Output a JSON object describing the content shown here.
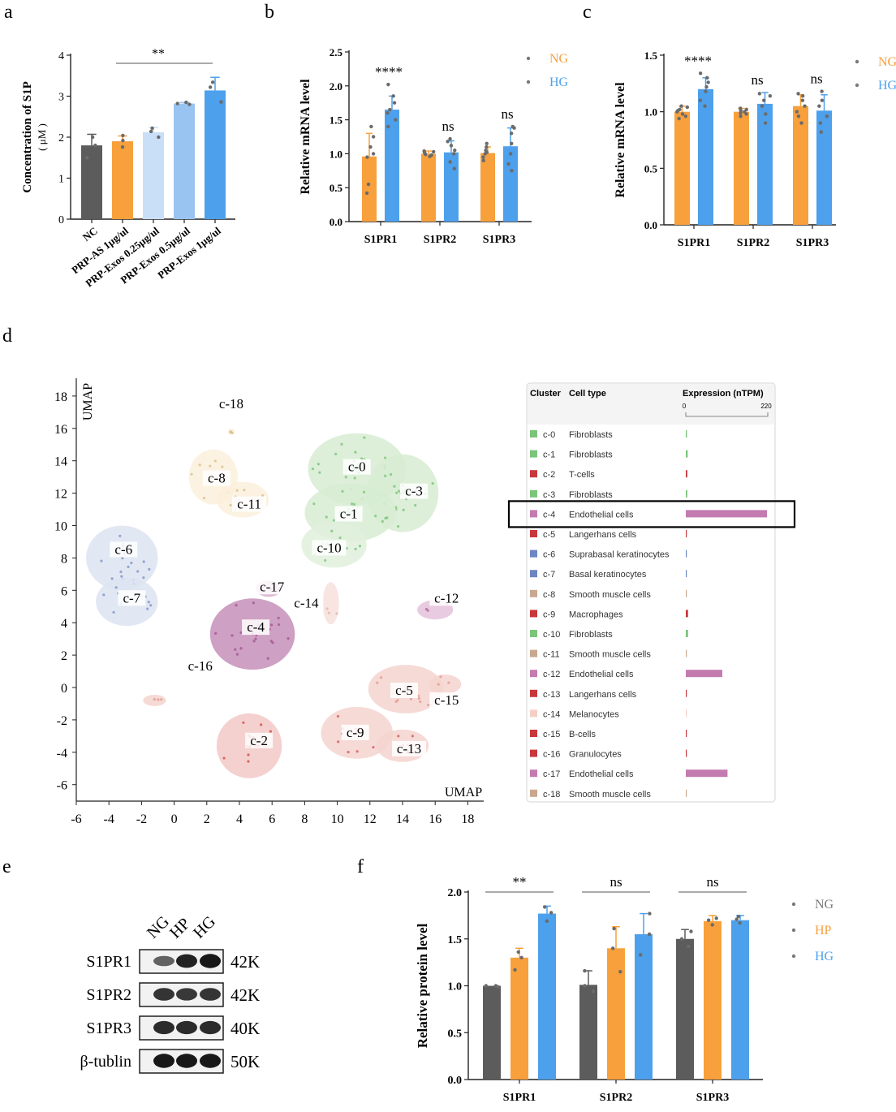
{
  "colors": {
    "NC": "#5c5c5c",
    "PRP-AS": "#f7a03c",
    "Exos025": "#c9dff7",
    "Exos05": "#99c4f2",
    "Exos1": "#4da0ec",
    "NG": "#f7a03c",
    "HG": "#4da0ec",
    "HP": "#f7a03c",
    "NGgrey": "#5c5c5c",
    "dot": "#6b6b6b"
  },
  "panel_letters": {
    "a": "a",
    "b": "b",
    "c": "c",
    "d": "d",
    "e": "e",
    "f": "f"
  },
  "chart_data": [
    {
      "id": "a",
      "type": "bar",
      "ylabel": "Concentration of S1P",
      "yunit": "( μM )",
      "ylim": [
        0,
        4
      ],
      "yticks": [
        "0",
        "1",
        "2",
        "3",
        "4"
      ],
      "categories": [
        "NC",
        "PRP-AS 1μg/ul",
        "PRP-Exos 0.25μg/ul",
        "PRP-Exos 0.5μg/ul",
        "PRP-Exos 1μg/ul"
      ],
      "values": [
        1.8,
        1.9,
        2.12,
        2.82,
        3.14
      ],
      "errors": [
        0.27,
        0.13,
        0.12,
        0.03,
        0.32
      ],
      "points": [
        [
          1.5,
          1.8,
          2.0
        ],
        [
          1.76,
          1.92,
          2.04
        ],
        [
          2.0,
          2.14,
          2.22
        ],
        [
          2.8,
          2.82,
          2.85
        ],
        [
          2.86,
          3.22,
          3.34
        ]
      ],
      "annotation": "**"
    },
    {
      "id": "b",
      "type": "bar",
      "ylabel": "Relative mRNA level",
      "ylim": [
        0,
        2.5
      ],
      "yticks": [
        "0.0",
        "0.5",
        "1.0",
        "1.5",
        "2.0",
        "2.5"
      ],
      "categories": [
        "S1PR1",
        "S1PR2",
        "S1PR3"
      ],
      "series": [
        {
          "name": "NG",
          "values": [
            0.96,
            1.0,
            1.01
          ],
          "errors": [
            0.34,
            0.04,
            0.09
          ],
          "points": [
            [
              0.42,
              0.55,
              0.95,
              1.0,
              1.1,
              1.25,
              1.4
            ],
            [
              0.96,
              0.98,
              0.99,
              1.0,
              1.02,
              1.03,
              1.04
            ],
            [
              0.9,
              0.95,
              1.0,
              1.02,
              1.05,
              1.1,
              1.15
            ]
          ]
        },
        {
          "name": "HG",
          "values": [
            1.65,
            1.02,
            1.11
          ],
          "errors": [
            0.2,
            0.17,
            0.27
          ],
          "points": [
            [
              1.4,
              1.5,
              1.6,
              1.65,
              1.75,
              1.85,
              2.02
            ],
            [
              0.78,
              0.88,
              1.0,
              1.05,
              1.12,
              1.18,
              1.22
            ],
            [
              0.75,
              0.85,
              1.0,
              1.15,
              1.3,
              1.38,
              1.4
            ]
          ]
        }
      ],
      "annotations": [
        "****",
        "ns",
        "ns"
      ]
    },
    {
      "id": "c",
      "type": "bar",
      "ylabel": "Relative mRNA level",
      "ylim": [
        0,
        1.5
      ],
      "yticks": [
        "0.0",
        "0.5",
        "1.0",
        "1.5"
      ],
      "categories": [
        "S1PR1",
        "S1PR2",
        "S1PR3"
      ],
      "series": [
        {
          "name": "NG",
          "values": [
            1.0,
            1.0,
            1.05
          ],
          "errors": [
            0.05,
            0.03,
            0.1
          ],
          "points": [
            [
              0.94,
              0.96,
              0.98,
              1.0,
              1.01,
              1.02,
              1.04,
              1.05
            ],
            [
              0.96,
              0.98,
              0.99,
              1.0,
              1.01,
              1.02,
              1.03
            ],
            [
              0.9,
              0.96,
              1.0,
              1.05,
              1.1,
              1.14,
              1.16
            ]
          ]
        },
        {
          "name": "HG",
          "values": [
            1.2,
            1.07,
            1.01
          ],
          "errors": [
            0.1,
            0.1,
            0.14
          ],
          "points": [
            [
              1.05,
              1.1,
              1.18,
              1.22,
              1.26,
              1.3,
              1.34
            ],
            [
              0.9,
              0.98,
              1.05,
              1.1,
              1.14,
              1.16
            ],
            [
              0.82,
              0.9,
              0.96,
              1.05,
              1.1,
              1.18
            ]
          ]
        }
      ],
      "annotations": [
        "****",
        "ns",
        "ns"
      ]
    },
    {
      "id": "d",
      "type": "scatter",
      "xlabel": "UMAP",
      "ylabel": "UMAP",
      "xlim": [
        -6,
        19
      ],
      "ylim": [
        -7,
        19
      ],
      "xticks": [
        "-6",
        "-4",
        "-2",
        "0",
        "2",
        "4",
        "6",
        "8",
        "10",
        "12",
        "14",
        "16",
        "18"
      ],
      "yticks": [
        "-6",
        "-4",
        "-2",
        "0",
        "2",
        "4",
        "6",
        "8",
        "10",
        "12",
        "14",
        "16",
        "18"
      ],
      "clusters": [
        {
          "label": "c-0",
          "x": 11.2,
          "y": 13.5,
          "rx": 3.0,
          "ry": 2.2,
          "color": "#d7ecd2",
          "dot": "#7bc47a"
        },
        {
          "label": "c-3",
          "x": 14.0,
          "y": 12.0,
          "rx": 2.2,
          "ry": 2.4,
          "color": "#d7ecd2",
          "dot": "#7bc47a"
        },
        {
          "label": "c-1",
          "x": 10.8,
          "y": 10.8,
          "rx": 2.8,
          "ry": 1.8,
          "color": "#d7ecd2",
          "dot": "#7bc47a"
        },
        {
          "label": "c-10",
          "x": 9.8,
          "y": 8.8,
          "rx": 2.0,
          "ry": 1.4,
          "color": "#e0f0dc",
          "dot": "#7bc47a"
        },
        {
          "label": "c-8",
          "x": 2.4,
          "y": 13.0,
          "rx": 1.5,
          "ry": 1.7,
          "color": "#fbf0dc",
          "dot": "#d9c08a"
        },
        {
          "label": "c-11",
          "x": 4.2,
          "y": 11.6,
          "rx": 1.6,
          "ry": 1.1,
          "color": "#fbf0dc",
          "dot": "#d9c08a"
        },
        {
          "label": "c-6",
          "x": -3.2,
          "y": 8.0,
          "rx": 2.2,
          "ry": 2.0,
          "color": "#dde4f1",
          "dot": "#7f95c8"
        },
        {
          "label": "c-7",
          "x": -2.9,
          "y": 5.3,
          "rx": 1.9,
          "ry": 1.5,
          "color": "#dde4f1",
          "dot": "#7f95c8"
        },
        {
          "label": "c-4",
          "x": 4.8,
          "y": 3.3,
          "rx": 2.6,
          "ry": 2.2,
          "color": "#c58fb8",
          "dot": "#a35592"
        },
        {
          "label": "c-17",
          "x": 5.8,
          "y": 6.1,
          "rx": 0.8,
          "ry": 0.5,
          "color": "#d9abcb",
          "dot": "#a35592"
        },
        {
          "label": "c-12",
          "x": 16.0,
          "y": 4.8,
          "rx": 1.1,
          "ry": 0.6,
          "color": "#e5c2dc",
          "dot": "#b56aa3"
        },
        {
          "label": "c-14",
          "x": 9.6,
          "y": 5.2,
          "rx": 0.5,
          "ry": 1.3,
          "color": "#f7e0dc",
          "dot": "#e7b3ab"
        },
        {
          "label": "c-5",
          "x": 14.2,
          "y": -0.1,
          "rx": 2.3,
          "ry": 1.5,
          "color": "#f5d3cf",
          "dot": "#e39891"
        },
        {
          "label": "c-15",
          "x": 16.6,
          "y": 0.2,
          "rx": 1.0,
          "ry": 0.6,
          "color": "#f5d3cf",
          "dot": "#e39891"
        },
        {
          "label": "c-9",
          "x": 11.2,
          "y": -2.8,
          "rx": 2.2,
          "ry": 1.6,
          "color": "#f5d3cf",
          "dot": "#d65c5c"
        },
        {
          "label": "c-13",
          "x": 14.0,
          "y": -3.6,
          "rx": 1.6,
          "ry": 1.0,
          "color": "#f5d3cf",
          "dot": "#d65c5c"
        },
        {
          "label": "c-2",
          "x": 4.6,
          "y": -3.6,
          "rx": 2.0,
          "ry": 2.0,
          "color": "#f2c9c6",
          "dot": "#d24b4b"
        },
        {
          "label": "c-16",
          "x": -1.2,
          "y": -0.8,
          "rx": 0.7,
          "ry": 0.35,
          "color": "#f5d3cf",
          "dot": "#e39891"
        },
        {
          "label": "c-18",
          "x": 3.5,
          "y": 15.8,
          "rx": 0.2,
          "ry": 0.2,
          "color": "#fbf0dc",
          "dot": "#d9c08a"
        }
      ],
      "label_positions": [
        {
          "label": "c-18",
          "x": 3.5,
          "y": 17.4
        },
        {
          "label": "c-8",
          "x": 2.6,
          "y": 12.8
        },
        {
          "label": "c-11",
          "x": 4.6,
          "y": 11.2
        },
        {
          "label": "c-0",
          "x": 11.2,
          "y": 13.5
        },
        {
          "label": "c-3",
          "x": 14.7,
          "y": 12.0
        },
        {
          "label": "c-1",
          "x": 10.7,
          "y": 10.6
        },
        {
          "label": "c-10",
          "x": 9.5,
          "y": 8.5
        },
        {
          "label": "c-6",
          "x": -3.1,
          "y": 8.4
        },
        {
          "label": "c-7",
          "x": -2.6,
          "y": 5.4
        },
        {
          "label": "c-17",
          "x": 6.0,
          "y": 6.1
        },
        {
          "label": "c-14",
          "x": 8.1,
          "y": 5.1
        },
        {
          "label": "c-12",
          "x": 16.7,
          "y": 5.4
        },
        {
          "label": "c-4",
          "x": 5.0,
          "y": 3.6
        },
        {
          "label": "c-16",
          "x": 1.6,
          "y": 1.2
        },
        {
          "label": "c-5",
          "x": 14.1,
          "y": -0.3
        },
        {
          "label": "c-15",
          "x": 16.7,
          "y": -0.9
        },
        {
          "label": "c-9",
          "x": 11.1,
          "y": -2.9
        },
        {
          "label": "c-13",
          "x": 14.4,
          "y": -3.9
        },
        {
          "label": "c-2",
          "x": 5.2,
          "y": -3.4
        }
      ]
    },
    {
      "id": "f",
      "type": "bar",
      "ylabel": "Relative protein level",
      "ylim": [
        0,
        2.0
      ],
      "yticks": [
        "0.0",
        "0.5",
        "1.0",
        "1.5",
        "2.0"
      ],
      "categories": [
        "S1PR1",
        "S1PR2",
        "S1PR3"
      ],
      "series": [
        {
          "name": "NG",
          "values": [
            1.0,
            1.01,
            1.5
          ],
          "errors": [
            0.0,
            0.15,
            0.1
          ],
          "points": [
            [
              0.99,
              1.0,
              1.0
            ],
            [
              0.94,
              1.0,
              1.16
            ],
            [
              1.42,
              1.5,
              1.58
            ]
          ]
        },
        {
          "name": "HP",
          "values": [
            1.3,
            1.4,
            1.69
          ],
          "errors": [
            0.1,
            0.23,
            0.06
          ],
          "points": [
            [
              1.17,
              1.3,
              1.36
            ],
            [
              1.15,
              1.4,
              1.61
            ],
            [
              1.65,
              1.7,
              1.72
            ]
          ]
        },
        {
          "name": "HG",
          "values": [
            1.77,
            1.55,
            1.7
          ],
          "errors": [
            0.08,
            0.22,
            0.05
          ],
          "points": [
            [
              1.69,
              1.78,
              1.84
            ],
            [
              1.33,
              1.55,
              1.77
            ],
            [
              1.67,
              1.71,
              1.74
            ]
          ]
        }
      ],
      "annotations": [
        "**",
        "ns",
        "ns"
      ]
    }
  ],
  "umap_legend": {
    "headers": {
      "cluster": "Cluster",
      "celltype": "Cell type",
      "expression": "Expression (nTPM)"
    },
    "scale": {
      "min": "0",
      "max": "220",
      "max_value": 220
    },
    "rows": [
      {
        "cluster": "c-0",
        "type": "Fibroblasts",
        "color": "#7bc47a",
        "value": 3
      },
      {
        "cluster": "c-1",
        "type": "Fibroblasts",
        "color": "#7bc47a",
        "value": 5
      },
      {
        "cluster": "c-2",
        "type": "T-cells",
        "color": "#c8373c",
        "value": 4
      },
      {
        "cluster": "c-3",
        "type": "Fibroblasts",
        "color": "#7bc47a",
        "value": 4
      },
      {
        "cluster": "c-4",
        "type": "Endothelial cells",
        "color": "#c37bb0",
        "value": 218,
        "highlight": true
      },
      {
        "cluster": "c-5",
        "type": "Langerhans cells",
        "color": "#c8373c",
        "value": 1
      },
      {
        "cluster": "c-6",
        "type": "Suprabasal keratinocytes",
        "color": "#6c86c1",
        "value": 1
      },
      {
        "cluster": "c-7",
        "type": "Basal keratinocytes",
        "color": "#6c86c1",
        "value": 1
      },
      {
        "cluster": "c-8",
        "type": "Smooth muscle cells",
        "color": "#c9a88f",
        "value": 1
      },
      {
        "cluster": "c-9",
        "type": "Macrophages",
        "color": "#c8373c",
        "value": 6
      },
      {
        "cluster": "c-10",
        "type": "Fibroblasts",
        "color": "#7bc47a",
        "value": 6
      },
      {
        "cluster": "c-11",
        "type": "Smooth muscle cells",
        "color": "#c9a88f",
        "value": 1
      },
      {
        "cluster": "c-12",
        "type": "Endothelial cells",
        "color": "#c37bb0",
        "value": 98
      },
      {
        "cluster": "c-13",
        "type": "Langerhans cells",
        "color": "#c8373c",
        "value": 1
      },
      {
        "cluster": "c-14",
        "type": "Melanocytes",
        "color": "#f3cfc4",
        "value": 0
      },
      {
        "cluster": "c-15",
        "type": "B-cells",
        "color": "#c8373c",
        "value": 1
      },
      {
        "cluster": "c-16",
        "type": "Granulocytes",
        "color": "#c8373c",
        "value": 0
      },
      {
        "cluster": "c-17",
        "type": "Endothelial cells",
        "color": "#c37bb0",
        "value": 112
      },
      {
        "cluster": "c-18",
        "type": "Smooth muscle cells",
        "color": "#c9a88f",
        "value": 0
      }
    ]
  },
  "western_blot": {
    "lanes": [
      "NG",
      "HP",
      "HG"
    ],
    "rows": [
      {
        "protein": "S1PR1",
        "size": "42K",
        "intensity": [
          0.55,
          0.9,
          0.95
        ]
      },
      {
        "protein": "S1PR2",
        "size": "42K",
        "intensity": [
          0.8,
          0.78,
          0.8
        ]
      },
      {
        "protein": "S1PR3",
        "size": "40K",
        "intensity": [
          0.85,
          0.85,
          0.85
        ]
      },
      {
        "protein": "β-tublin",
        "size": "50K",
        "intensity": [
          0.95,
          0.95,
          0.95
        ]
      }
    ]
  }
}
